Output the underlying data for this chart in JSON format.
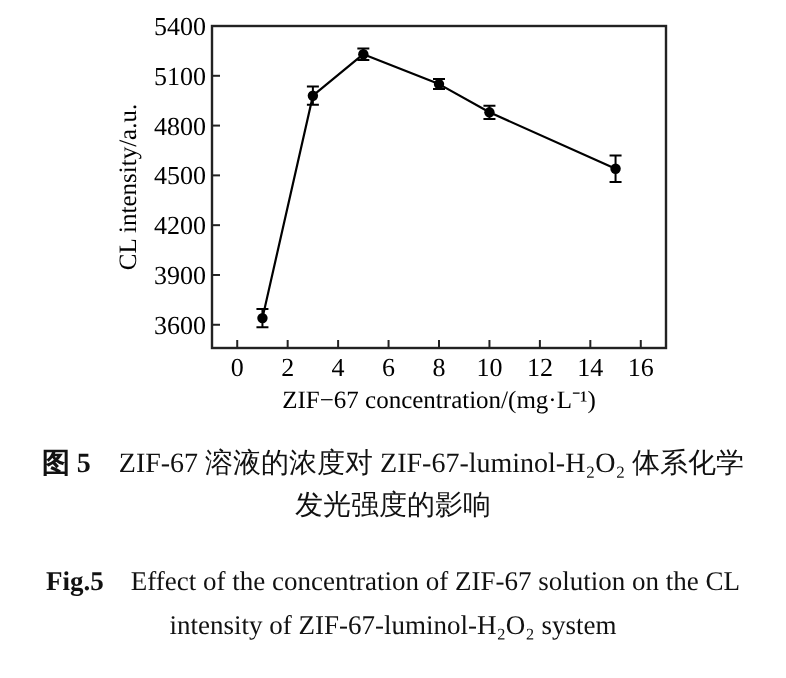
{
  "chart_data": {
    "type": "line",
    "xlabel": "ZIF−67 concentration/(mg·L⁻¹)",
    "ylabel": "CL intensity/a.u.",
    "x": [
      1,
      3,
      5,
      8,
      10,
      15
    ],
    "series": [
      {
        "color": "#000000",
        "values": [
          3640,
          4980,
          5230,
          5050,
          4880,
          4540
        ],
        "errors": [
          55,
          55,
          35,
          30,
          40,
          80
        ]
      }
    ],
    "xlim": [
      -1,
      17
    ],
    "xticks": [
      0,
      2,
      4,
      6,
      8,
      10,
      12,
      14,
      16
    ],
    "ylim": [
      3460,
      5400
    ],
    "yticks": [
      3600,
      3900,
      4200,
      4500,
      4800,
      5100,
      5400
    ],
    "marker": "circle",
    "line_style": "solid",
    "grid": false,
    "annotations": [
      "图 5",
      "ZIF-67 溶液的浓度对 ZIF-67-luminol-H₂O₂ 体系化学发光强度的影响",
      "Fig.5",
      "Effect of the concentration of ZIF-67 solution on the CL intensity of ZIF-67-luminol-H₂O₂ system"
    ]
  }
}
